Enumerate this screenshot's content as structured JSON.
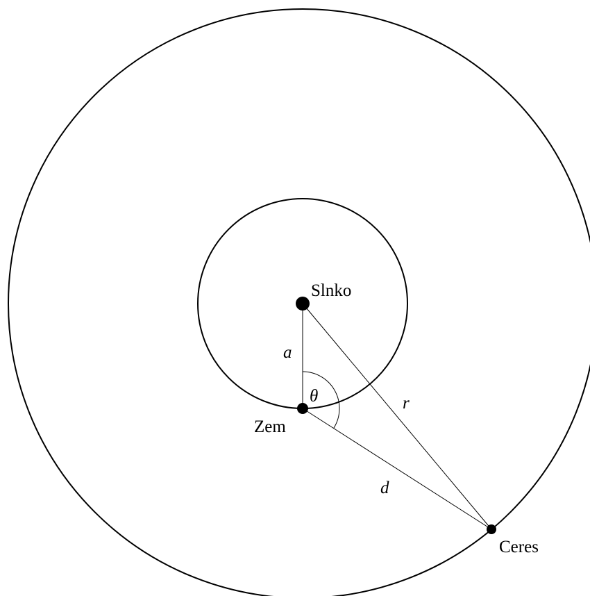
{
  "nodes": [
    {
      "label": "Slnko"
    },
    {
      "label": "Zem"
    },
    {
      "label": "Ceres"
    }
  ],
  "edges": [
    {
      "label": "a"
    },
    {
      "label": "r"
    },
    {
      "label": "d"
    }
  ],
  "angle": {
    "label": "θ"
  }
}
